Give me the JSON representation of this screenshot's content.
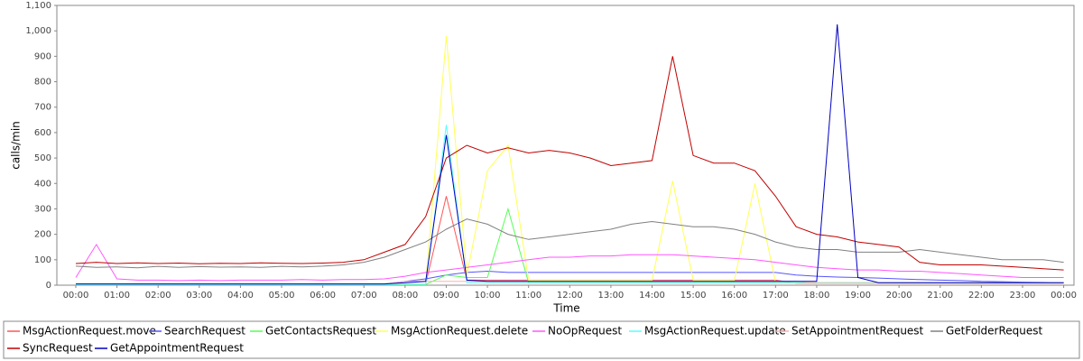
{
  "chart_data": {
    "type": "line",
    "xlabel": "Time",
    "ylabel": "calls/min",
    "x": [
      0,
      0.5,
      1,
      1.5,
      2,
      2.5,
      3,
      3.5,
      4,
      4.5,
      5,
      5.5,
      6,
      6.5,
      7,
      7.5,
      8,
      8.5,
      9,
      9.5,
      10,
      10.5,
      11,
      11.5,
      12,
      12.5,
      13,
      13.5,
      14,
      14.5,
      15,
      15.5,
      16,
      16.5,
      17,
      17.5,
      18,
      18.5,
      19,
      19.5,
      20,
      20.5,
      21,
      21.5,
      22,
      22.5,
      23,
      23.5,
      24
    ],
    "xlim": [
      -0.46,
      24.25
    ],
    "xticks": [
      {
        "value": 0,
        "label": "00:00"
      },
      {
        "value": 1,
        "label": "01:00"
      },
      {
        "value": 2,
        "label": "02:00"
      },
      {
        "value": 3,
        "label": "03:00"
      },
      {
        "value": 4,
        "label": "04:00"
      },
      {
        "value": 5,
        "label": "05:00"
      },
      {
        "value": 6,
        "label": "06:00"
      },
      {
        "value": 7,
        "label": "07:00"
      },
      {
        "value": 8,
        "label": "08:00"
      },
      {
        "value": 9,
        "label": "09:00"
      },
      {
        "value": 10,
        "label": "10:00"
      },
      {
        "value": 11,
        "label": "11:00"
      },
      {
        "value": 12,
        "label": "12:00"
      },
      {
        "value": 13,
        "label": "13:00"
      },
      {
        "value": 14,
        "label": "14:00"
      },
      {
        "value": 15,
        "label": "15:00"
      },
      {
        "value": 16,
        "label": "16:00"
      },
      {
        "value": 17,
        "label": "17:00"
      },
      {
        "value": 18,
        "label": "18:00"
      },
      {
        "value": 19,
        "label": "19:00"
      },
      {
        "value": 20,
        "label": "20:00"
      },
      {
        "value": 21,
        "label": "21:00"
      },
      {
        "value": 22,
        "label": "22:00"
      },
      {
        "value": 23,
        "label": "23:00"
      },
      {
        "value": 24,
        "label": "00:00"
      }
    ],
    "ylim": [
      0,
      1100
    ],
    "yticks": [
      0,
      100,
      200,
      300,
      400,
      500,
      600,
      700,
      800,
      900,
      {
        "value": 1000,
        "label": "1,000"
      },
      {
        "value": 1100,
        "label": "1,100"
      }
    ],
    "grid": false,
    "series": [
      {
        "name": "MsgActionRequest.move",
        "color": "#ff5555",
        "values": [
          5,
          5,
          5,
          5,
          5,
          5,
          5,
          5,
          5,
          5,
          5,
          5,
          5,
          5,
          5,
          5,
          5,
          5,
          350,
          20,
          20,
          20,
          20,
          20,
          20,
          20,
          20,
          20,
          20,
          20,
          20,
          20,
          20,
          20,
          20,
          8,
          8,
          8,
          8,
          8,
          8,
          8,
          8,
          8,
          8,
          8,
          8,
          8,
          8
        ]
      },
      {
        "name": "SearchRequest",
        "color": "#5555ff",
        "values": [
          5,
          5,
          5,
          5,
          5,
          5,
          5,
          5,
          5,
          5,
          5,
          5,
          5,
          5,
          5,
          5,
          15,
          25,
          40,
          50,
          55,
          50,
          50,
          50,
          50,
          50,
          50,
          50,
          50,
          50,
          50,
          50,
          50,
          50,
          50,
          40,
          35,
          32,
          30,
          28,
          25,
          22,
          20,
          18,
          15,
          14,
          12,
          11,
          10
        ]
      },
      {
        "name": "GetContactsRequest",
        "color": "#55ff55",
        "values": [
          3,
          3,
          3,
          3,
          3,
          3,
          3,
          3,
          3,
          3,
          3,
          3,
          3,
          3,
          3,
          3,
          3,
          3,
          40,
          30,
          30,
          300,
          10,
          10,
          10,
          10,
          10,
          10,
          10,
          10,
          10,
          10,
          10,
          10,
          10,
          10,
          10,
          10,
          10,
          10,
          10,
          10,
          10,
          10,
          10,
          10,
          10,
          10,
          10
        ]
      },
      {
        "name": "MsgActionRequest.delete",
        "color": "#ffff55",
        "values": [
          5,
          5,
          5,
          5,
          5,
          5,
          5,
          5,
          5,
          5,
          5,
          5,
          5,
          5,
          5,
          5,
          5,
          5,
          980,
          40,
          450,
          550,
          20,
          20,
          20,
          20,
          20,
          20,
          20,
          410,
          20,
          20,
          20,
          400,
          10,
          10,
          10,
          10,
          10,
          10,
          10,
          10,
          10,
          10,
          10,
          10,
          10,
          10,
          10
        ]
      },
      {
        "name": "NoOpRequest",
        "color": "#ff55ff",
        "values": [
          30,
          160,
          25,
          20,
          20,
          18,
          20,
          18,
          20,
          20,
          20,
          22,
          20,
          22,
          22,
          25,
          35,
          50,
          60,
          70,
          80,
          90,
          100,
          110,
          110,
          115,
          115,
          120,
          120,
          120,
          115,
          110,
          105,
          100,
          90,
          80,
          70,
          65,
          60,
          60,
          55,
          55,
          50,
          45,
          40,
          35,
          30,
          30,
          30
        ]
      },
      {
        "name": "MsgActionRequest.update",
        "color": "#55ffff",
        "values": [
          3,
          3,
          3,
          3,
          3,
          3,
          3,
          3,
          3,
          3,
          3,
          3,
          3,
          3,
          3,
          3,
          3,
          3,
          630,
          10,
          10,
          10,
          10,
          10,
          10,
          10,
          10,
          10,
          10,
          10,
          10,
          10,
          10,
          10,
          10,
          10,
          10,
          10,
          10,
          10,
          10,
          10,
          10,
          10,
          10,
          10,
          10,
          10,
          10
        ]
      },
      {
        "name": "SetAppointmentRequest",
        "color": "#ffafaf",
        "values": [
          5,
          5,
          5,
          5,
          5,
          5,
          5,
          5,
          5,
          5,
          5,
          5,
          5,
          5,
          5,
          5,
          15,
          15,
          15,
          15,
          15,
          15,
          15,
          15,
          15,
          15,
          15,
          15,
          15,
          15,
          15,
          15,
          15,
          15,
          15,
          15,
          8,
          8,
          8,
          8,
          8,
          8,
          8,
          8,
          8,
          8,
          8,
          8,
          8
        ]
      },
      {
        "name": "GetFolderRequest",
        "color": "#808080",
        "values": [
          75,
          70,
          72,
          68,
          74,
          70,
          73,
          71,
          72,
          70,
          74,
          72,
          75,
          80,
          90,
          110,
          140,
          170,
          220,
          260,
          240,
          200,
          180,
          190,
          200,
          210,
          220,
          240,
          250,
          240,
          230,
          230,
          220,
          200,
          170,
          150,
          140,
          140,
          130,
          130,
          130,
          140,
          130,
          120,
          110,
          100,
          100,
          100,
          90
        ]
      },
      {
        "name": "SyncRequest",
        "color": "#c00000",
        "values": [
          85,
          90,
          85,
          88,
          85,
          87,
          84,
          86,
          85,
          88,
          86,
          85,
          87,
          90,
          100,
          130,
          160,
          270,
          500,
          550,
          520,
          540,
          520,
          530,
          520,
          500,
          470,
          480,
          490,
          900,
          510,
          480,
          480,
          450,
          350,
          230,
          200,
          190,
          170,
          160,
          150,
          90,
          80,
          80,
          80,
          75,
          70,
          65,
          60
        ]
      },
      {
        "name": "GetAppointmentRequest",
        "color": "#0000c0",
        "values": [
          5,
          5,
          5,
          5,
          5,
          5,
          5,
          5,
          5,
          5,
          5,
          5,
          5,
          5,
          5,
          5,
          10,
          15,
          590,
          20,
          15,
          15,
          15,
          15,
          15,
          15,
          15,
          15,
          15,
          15,
          15,
          15,
          15,
          15,
          15,
          15,
          15,
          1025,
          30,
          10,
          10,
          10,
          10,
          10,
          10,
          10,
          10,
          10,
          10
        ]
      }
    ]
  }
}
